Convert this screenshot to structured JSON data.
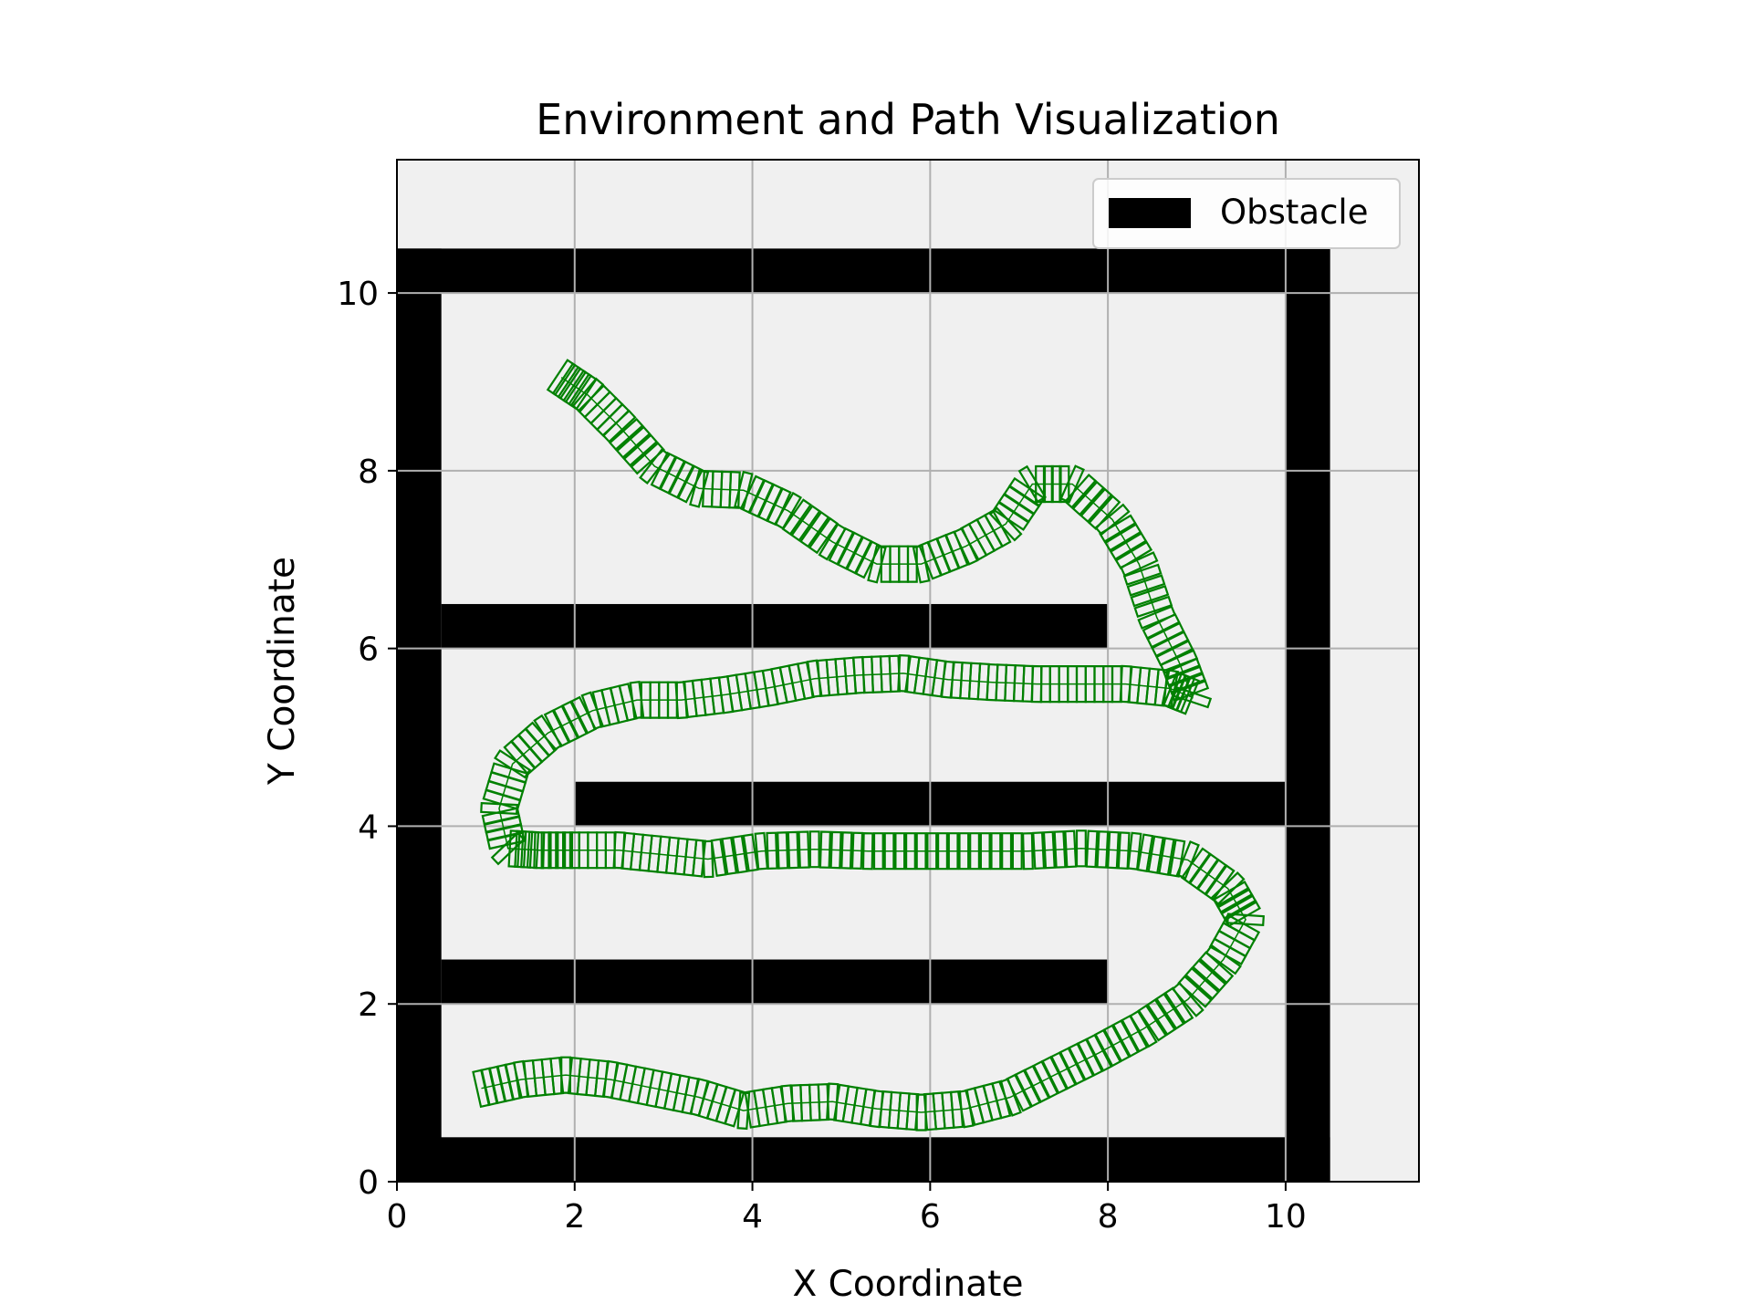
{
  "chart_data": {
    "type": "scatter",
    "title": "Environment and Path Visualization",
    "xlabel": "X Coordinate",
    "ylabel": "Y Coordinate",
    "xlim": [
      0,
      11.5
    ],
    "ylim": [
      0,
      11.5
    ],
    "xticks": [
      0,
      2,
      4,
      6,
      8,
      10
    ],
    "yticks": [
      0,
      2,
      4,
      6,
      8,
      10
    ],
    "grid": true,
    "legend": {
      "placement": "top-right",
      "entries": [
        "Obstacle"
      ]
    },
    "colors": {
      "background": "#f0f0f0",
      "obstacle": "#000000",
      "path": "#008000",
      "grid": "#b0b0b0"
    },
    "obstacles": [
      {
        "x": 0,
        "y": 10,
        "w": 10.5,
        "h": 0.5
      },
      {
        "x": 10,
        "y": 0,
        "w": 0.5,
        "h": 10.5
      },
      {
        "x": 0,
        "y": 0,
        "w": 10.5,
        "h": 0.5
      },
      {
        "x": 0,
        "y": 0,
        "w": 0.5,
        "h": 10.5
      },
      {
        "x": 0.5,
        "y": 6,
        "w": 7.5,
        "h": 0.5
      },
      {
        "x": 2,
        "y": 4,
        "w": 8,
        "h": 0.5
      },
      {
        "x": 0.5,
        "y": 2,
        "w": 7.5,
        "h": 0.5
      }
    ],
    "path": [
      [
        0.95,
        1.05
      ],
      [
        1.4,
        1.15
      ],
      [
        1.9,
        1.2
      ],
      [
        2.4,
        1.15
      ],
      [
        2.9,
        1.05
      ],
      [
        3.4,
        0.95
      ],
      [
        3.9,
        0.8
      ],
      [
        4.4,
        0.88
      ],
      [
        4.9,
        0.9
      ],
      [
        5.4,
        0.82
      ],
      [
        5.9,
        0.78
      ],
      [
        6.4,
        0.82
      ],
      [
        6.9,
        0.95
      ],
      [
        7.4,
        1.2
      ],
      [
        7.9,
        1.45
      ],
      [
        8.4,
        1.72
      ],
      [
        8.9,
        2.05
      ],
      [
        9.3,
        2.5
      ],
      [
        9.55,
        2.95
      ],
      [
        9.35,
        3.3
      ],
      [
        8.9,
        3.62
      ],
      [
        8.3,
        3.72
      ],
      [
        7.7,
        3.75
      ],
      [
        7.1,
        3.72
      ],
      [
        6.5,
        3.72
      ],
      [
        5.9,
        3.72
      ],
      [
        5.3,
        3.72
      ],
      [
        4.7,
        3.74
      ],
      [
        4.1,
        3.72
      ],
      [
        3.5,
        3.63
      ],
      [
        3.0,
        3.68
      ],
      [
        2.5,
        3.73
      ],
      [
        2.0,
        3.73
      ],
      [
        1.6,
        3.73
      ],
      [
        1.25,
        3.75
      ],
      [
        1.15,
        4.2
      ],
      [
        1.3,
        4.7
      ],
      [
        1.7,
        5.05
      ],
      [
        2.2,
        5.3
      ],
      [
        2.7,
        5.42
      ],
      [
        3.2,
        5.42
      ],
      [
        3.7,
        5.48
      ],
      [
        4.2,
        5.56
      ],
      [
        4.7,
        5.66
      ],
      [
        5.2,
        5.7
      ],
      [
        5.7,
        5.72
      ],
      [
        6.2,
        5.65
      ],
      [
        6.7,
        5.62
      ],
      [
        7.2,
        5.6
      ],
      [
        7.7,
        5.6
      ],
      [
        8.2,
        5.6
      ],
      [
        8.7,
        5.55
      ],
      [
        8.95,
        5.45
      ],
      [
        8.8,
        5.85
      ],
      [
        8.55,
        6.35
      ],
      [
        8.35,
        6.95
      ],
      [
        8.05,
        7.45
      ],
      [
        7.6,
        7.85
      ],
      [
        7.15,
        7.85
      ],
      [
        6.85,
        7.4
      ],
      [
        6.4,
        7.15
      ],
      [
        5.9,
        6.95
      ],
      [
        5.4,
        6.95
      ],
      [
        4.9,
        7.2
      ],
      [
        4.4,
        7.55
      ],
      [
        3.9,
        7.78
      ],
      [
        3.4,
        7.8
      ],
      [
        2.9,
        8.05
      ],
      [
        2.5,
        8.5
      ],
      [
        2.15,
        8.85
      ],
      [
        1.85,
        9.05
      ]
    ]
  }
}
